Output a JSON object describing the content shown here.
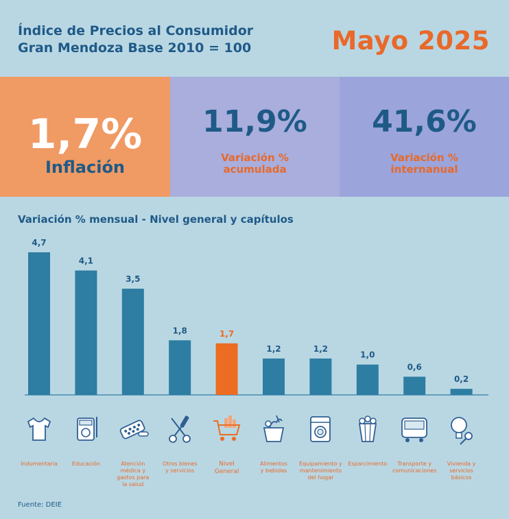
{
  "header": {
    "title_line1": "Índice de Precios al Consumidor",
    "title_line2": "Gran Mendoza Base 2010 = 100",
    "period": "Mayo 2025"
  },
  "kpis": {
    "inflation": {
      "value": "1,7%",
      "label": "Inflación"
    },
    "accumulated": {
      "value": "11,9%",
      "label_line1": "Variación %",
      "label_line2": "acumulada"
    },
    "interannual": {
      "value": "41,6%",
      "label_line1": "Variación %",
      "label_line2": "internanual"
    }
  },
  "chart_data": {
    "type": "bar",
    "title": "Variación % mensual - Nivel general y capítulos",
    "categories": [
      "Indumentaria",
      "Educación",
      "Atención médica y gastos para la salud",
      "Otros bienes y servicios",
      "Nivel General",
      "Alimentos y bebidas",
      "Equipamiento y mantenimiento del hogar",
      "Esparcimiento",
      "Transporte y comunicaciones",
      "Vivienda y servicios básicos"
    ],
    "values": [
      4.7,
      4.1,
      3.5,
      1.8,
      1.7,
      1.2,
      1.2,
      1.0,
      0.6,
      0.2
    ],
    "value_labels": [
      "4,7",
      "4,1",
      "3,5",
      "1,8",
      "1,7",
      "1,2",
      "1,2",
      "1,0",
      "0,6",
      "0,2"
    ],
    "highlight_index": 4,
    "ylim": [
      0,
      4.7
    ],
    "colors": {
      "bar": "#2e7da3",
      "highlight": "#ec6c22",
      "label": "#1f5a87",
      "label_highlight": "#ec6c22"
    }
  },
  "icons": [
    "tshirt-icon",
    "calculator-icon",
    "pills-icon",
    "scissors-icon",
    "shopping-cart-icon",
    "grocery-bag-icon",
    "washing-machine-icon",
    "popcorn-icon",
    "bus-icon",
    "lightbulb-key-icon"
  ],
  "category_labels": [
    [
      "Indumentaria"
    ],
    [
      "Educación"
    ],
    [
      "Atención",
      "médica y",
      "gastos para",
      "la salud"
    ],
    [
      "Otros bienes",
      "y servicios"
    ],
    [
      "Nivel",
      "General"
    ],
    [
      "Alimentos",
      "y bebidas"
    ],
    [
      "Equipamiento y",
      "mantenimiento",
      "del hogar"
    ],
    [
      "Esparcimiento"
    ],
    [
      "Transporte y",
      "comunicaciones"
    ],
    [
      "Vivienda y",
      "servicios",
      "básicos"
    ]
  ],
  "source": "Fuente: DEIE"
}
